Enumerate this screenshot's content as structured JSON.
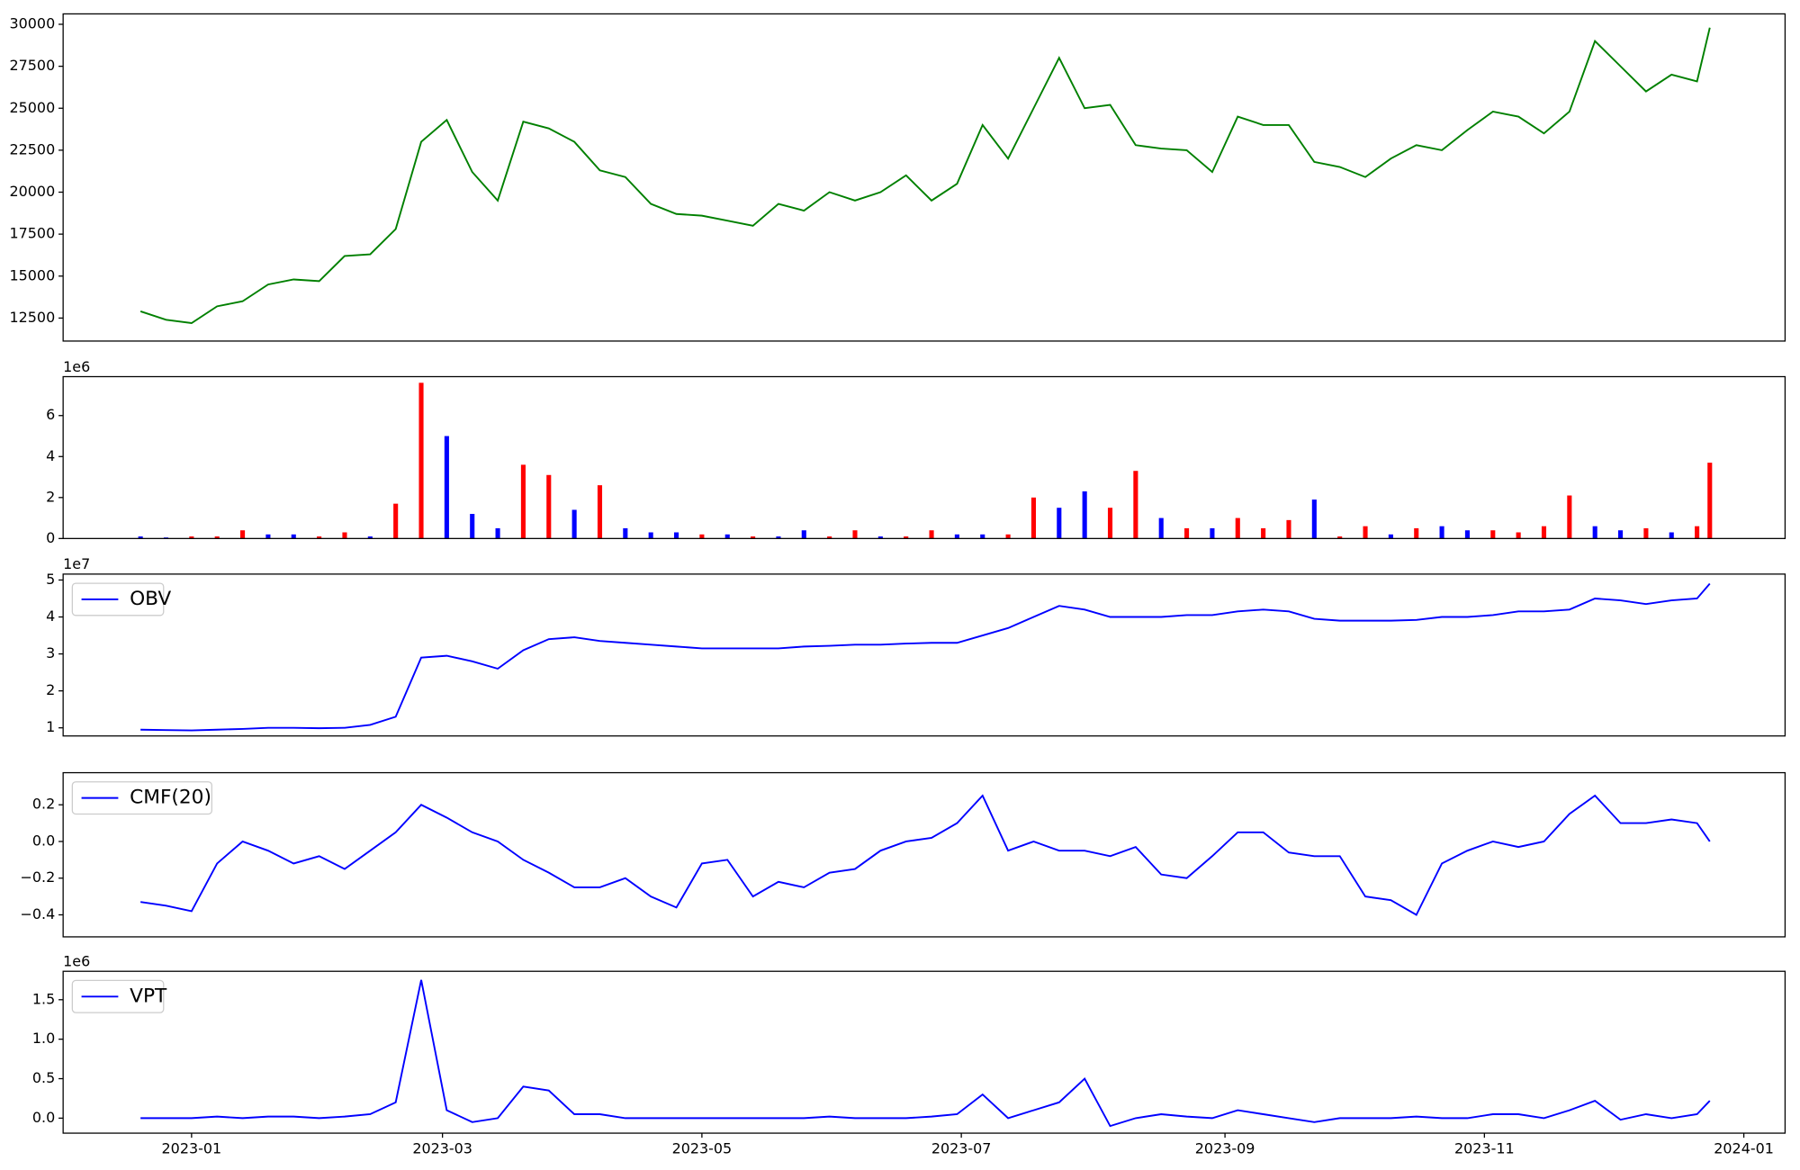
{
  "chart_data": [
    {
      "type": "line",
      "color": "green",
      "x": [
        -12,
        -6,
        0,
        6,
        12,
        18,
        24,
        30,
        36,
        42,
        48,
        54,
        60,
        66,
        72,
        78,
        84,
        90,
        96,
        102,
        108,
        114,
        120,
        126,
        132,
        138,
        144,
        150,
        156,
        162,
        168,
        174,
        180,
        186,
        192,
        198,
        204,
        210,
        216,
        222,
        228,
        234,
        240,
        246,
        252,
        258,
        264,
        270,
        276,
        282,
        288,
        294,
        300,
        306,
        312,
        318,
        324,
        330,
        336,
        342,
        348,
        354,
        357
      ],
      "values": [
        12900,
        12400,
        12200,
        13200,
        13500,
        14500,
        14800,
        14700,
        16200,
        16300,
        17800,
        23000,
        24300,
        21200,
        19500,
        24200,
        23800,
        23000,
        21300,
        20900,
        19300,
        18700,
        18600,
        18300,
        18000,
        19300,
        18900,
        20000,
        19500,
        20000,
        21000,
        19500,
        20500,
        24000,
        22000,
        25000,
        28000,
        25000,
        25200,
        22800,
        22600,
        22500,
        21200,
        24500,
        24000,
        24000,
        21800,
        21500,
        20900,
        22000,
        22800,
        22500,
        23700,
        24800,
        24500,
        23500,
        24800,
        29000,
        27500,
        26000,
        27000,
        26600,
        29800
      ],
      "xlim": [
        -30.2,
        374.7
      ],
      "ylim": [
        11130,
        30620
      ],
      "yticks": [
        12500,
        15000,
        17500,
        20000,
        22500,
        25000,
        27500,
        30000
      ]
    },
    {
      "type": "bar",
      "offset_text": "1e6",
      "x": [
        -12,
        -6,
        0,
        6,
        12,
        18,
        24,
        30,
        36,
        42,
        48,
        54,
        60,
        66,
        72,
        78,
        84,
        90,
        96,
        102,
        108,
        114,
        120,
        126,
        132,
        138,
        144,
        150,
        156,
        162,
        168,
        174,
        180,
        186,
        192,
        198,
        204,
        210,
        216,
        222,
        228,
        234,
        240,
        246,
        252,
        258,
        264,
        270,
        276,
        282,
        288,
        294,
        300,
        306,
        312,
        318,
        324,
        330,
        336,
        342,
        348,
        354,
        357
      ],
      "values": [
        0.1,
        0.05,
        0.1,
        0.1,
        0.4,
        0.2,
        0.2,
        0.1,
        0.3,
        0.1,
        1.7,
        7.6,
        5.0,
        1.2,
        0.5,
        3.6,
        3.1,
        1.4,
        2.6,
        0.5,
        0.3,
        0.3,
        0.2,
        0.2,
        0.1,
        0.1,
        0.4,
        0.1,
        0.4,
        0.1,
        0.1,
        0.4,
        0.2,
        0.2,
        0.2,
        2.0,
        1.5,
        2.3,
        1.5,
        3.3,
        1.0,
        0.5,
        0.5,
        1.0,
        0.5,
        0.9,
        1.9,
        0.1,
        0.6,
        0.2,
        0.5,
        0.6,
        0.4,
        0.4,
        0.3,
        0.6,
        2.1,
        0.6,
        0.4,
        0.5,
        0.3,
        0.6,
        3.7
      ],
      "colors": [
        "blue",
        "blue",
        "red",
        "red",
        "red",
        "blue",
        "blue",
        "red",
        "red",
        "blue",
        "red",
        "red",
        "blue",
        "blue",
        "blue",
        "red",
        "red",
        "blue",
        "red",
        "blue",
        "blue",
        "blue",
        "red",
        "blue",
        "red",
        "blue",
        "blue",
        "red",
        "red",
        "blue",
        "red",
        "red",
        "blue",
        "blue",
        "red",
        "red",
        "blue",
        "blue",
        "red",
        "red",
        "blue",
        "red",
        "blue",
        "red",
        "red",
        "red",
        "blue",
        "red",
        "red",
        "blue",
        "red",
        "blue",
        "blue",
        "red",
        "red",
        "red",
        "red",
        "blue",
        "blue",
        "red",
        "blue",
        "red",
        "red"
      ],
      "xlim": [
        -30.2,
        374.7
      ],
      "ylim": [
        0,
        7.9
      ],
      "yticks": [
        0,
        2,
        4,
        6
      ]
    },
    {
      "type": "line",
      "offset_text": "1e7",
      "legend": "upper left",
      "x": [
        -12,
        -6,
        0,
        6,
        12,
        18,
        24,
        30,
        36,
        42,
        48,
        54,
        60,
        66,
        72,
        78,
        84,
        90,
        96,
        102,
        108,
        114,
        120,
        126,
        132,
        138,
        144,
        150,
        156,
        162,
        168,
        174,
        180,
        186,
        192,
        198,
        204,
        210,
        216,
        222,
        228,
        234,
        240,
        246,
        252,
        258,
        264,
        270,
        276,
        282,
        288,
        294,
        300,
        306,
        312,
        318,
        324,
        330,
        336,
        342,
        348,
        354,
        357
      ],
      "series": [
        {
          "name": "OBV",
          "color": "blue",
          "values": [
            0.95,
            0.94,
            0.93,
            0.95,
            0.97,
            1.0,
            1.0,
            0.99,
            1.0,
            1.08,
            1.3,
            2.9,
            2.95,
            2.8,
            2.6,
            3.1,
            3.4,
            3.45,
            3.35,
            3.3,
            3.25,
            3.2,
            3.15,
            3.15,
            3.15,
            3.15,
            3.2,
            3.22,
            3.25,
            3.25,
            3.28,
            3.3,
            3.3,
            3.5,
            3.7,
            4.0,
            4.3,
            4.2,
            4.0,
            4.0,
            4.0,
            4.05,
            4.05,
            4.15,
            4.2,
            4.15,
            3.95,
            3.9,
            3.9,
            3.9,
            3.92,
            4.0,
            4.0,
            4.05,
            4.15,
            4.15,
            4.2,
            4.5,
            4.45,
            4.35,
            4.45,
            4.5,
            4.9
          ]
        }
      ],
      "xlim": [
        -30.2,
        374.7
      ],
      "ylim": [
        0.78,
        5.16
      ],
      "yticks": [
        1,
        2,
        3,
        4,
        5
      ]
    },
    {
      "type": "line",
      "legend": "upper left",
      "x": [
        -12,
        -6,
        0,
        6,
        12,
        18,
        24,
        30,
        36,
        42,
        48,
        54,
        60,
        66,
        72,
        78,
        84,
        90,
        96,
        102,
        108,
        114,
        120,
        126,
        132,
        138,
        144,
        150,
        156,
        162,
        168,
        174,
        180,
        186,
        192,
        198,
        204,
        210,
        216,
        222,
        228,
        234,
        240,
        246,
        252,
        258,
        264,
        270,
        276,
        282,
        288,
        294,
        300,
        306,
        312,
        318,
        324,
        330,
        336,
        342,
        348,
        354,
        357
      ],
      "series": [
        {
          "name": "CMF(20)",
          "color": "blue",
          "values": [
            -0.33,
            -0.35,
            -0.38,
            -0.12,
            0.0,
            -0.05,
            -0.12,
            -0.08,
            -0.15,
            -0.05,
            0.05,
            0.2,
            0.13,
            0.05,
            0.0,
            -0.1,
            -0.17,
            -0.25,
            -0.25,
            -0.2,
            -0.3,
            -0.36,
            -0.12,
            -0.1,
            -0.3,
            -0.22,
            -0.25,
            -0.17,
            -0.15,
            -0.05,
            0.0,
            0.02,
            0.1,
            0.25,
            -0.05,
            0.0,
            -0.05,
            -0.05,
            -0.08,
            -0.03,
            -0.18,
            -0.2,
            -0.08,
            0.05,
            0.05,
            -0.06,
            -0.08,
            -0.08,
            -0.3,
            -0.32,
            -0.4,
            -0.12,
            -0.05,
            0.0,
            -0.03,
            0.0,
            0.15,
            0.25,
            0.1,
            0.1,
            0.12,
            0.1,
            0.0
          ]
        }
      ],
      "xlim": [
        -30.2,
        374.7
      ],
      "ylim": [
        -0.52,
        0.375
      ],
      "yticks": [
        {
          "value": -0.4,
          "label": "−0.4"
        },
        {
          "value": -0.2,
          "label": "−0.2"
        },
        {
          "value": 0,
          "label": "0.0"
        },
        0.2
      ]
    },
    {
      "type": "line",
      "offset_text": "1e6",
      "legend": "upper left",
      "x": [
        -12,
        -6,
        0,
        6,
        12,
        18,
        24,
        30,
        36,
        42,
        48,
        54,
        60,
        66,
        72,
        78,
        84,
        90,
        96,
        102,
        108,
        114,
        120,
        126,
        132,
        138,
        144,
        150,
        156,
        162,
        168,
        174,
        180,
        186,
        192,
        198,
        204,
        210,
        216,
        222,
        228,
        234,
        240,
        246,
        252,
        258,
        264,
        270,
        276,
        282,
        288,
        294,
        300,
        306,
        312,
        318,
        324,
        330,
        336,
        342,
        348,
        354,
        357
      ],
      "series": [
        {
          "name": "VPT",
          "color": "blue",
          "values": [
            0,
            0,
            0,
            0.02,
            0,
            0.02,
            0.02,
            0,
            0.02,
            0.05,
            0.2,
            1.75,
            0.1,
            -0.05,
            0,
            0.4,
            0.35,
            0.05,
            0.05,
            0,
            0,
            0,
            0,
            0,
            0,
            0,
            0,
            0.02,
            0,
            0,
            0,
            0.02,
            0.05,
            0.3,
            0,
            0.1,
            0.2,
            0.5,
            -0.1,
            0,
            0.05,
            0.02,
            0,
            0.1,
            0.05,
            0,
            -0.05,
            0,
            0,
            0,
            0.02,
            0,
            0,
            0.05,
            0.05,
            0,
            0.1,
            0.22,
            -0.02,
            0.05,
            0,
            0.05,
            0.22
          ]
        }
      ],
      "xlim": [
        -30.2,
        374.7
      ],
      "ylim": [
        -0.19,
        1.86
      ],
      "yticks": [
        {
          "value": 0,
          "label": "0.0"
        },
        0.5,
        {
          "value": 1,
          "label": "1.0"
        },
        1.5
      ],
      "xticks": [
        {
          "value": 0,
          "label": "2023-01"
        },
        {
          "value": 59,
          "label": "2023-03"
        },
        {
          "value": 120,
          "label": "2023-05"
        },
        {
          "value": 181,
          "label": "2023-07"
        },
        {
          "value": 243,
          "label": "2023-09"
        },
        {
          "value": 304,
          "label": "2023-11"
        },
        {
          "value": 365,
          "label": "2024-01"
        }
      ]
    }
  ]
}
